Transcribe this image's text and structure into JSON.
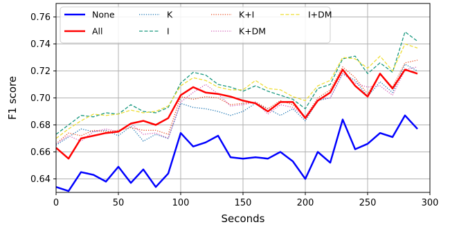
{
  "chart_data": {
    "type": "line",
    "title": "",
    "xlabel": "Seconds",
    "ylabel": "F1 score",
    "xlim": [
      0,
      300
    ],
    "ylim": [
      0.63,
      0.77
    ],
    "xticks": [
      0,
      50,
      100,
      150,
      200,
      250,
      300
    ],
    "yticks": [
      0.64,
      0.66,
      0.68,
      0.7,
      0.72,
      0.74,
      0.76
    ],
    "xtick_labels": [
      "0",
      "50",
      "100",
      "150",
      "200",
      "250",
      "300"
    ],
    "ytick_labels": [
      "0.64",
      "0.66",
      "0.68",
      "0.70",
      "0.72",
      "0.74",
      "0.76"
    ],
    "grid": true,
    "legend_placement": "top-left",
    "x": [
      0,
      10,
      20,
      30,
      40,
      50,
      60,
      70,
      80,
      90,
      100,
      110,
      120,
      130,
      140,
      150,
      160,
      170,
      180,
      190,
      200,
      210,
      220,
      230,
      240,
      250,
      260,
      270,
      280,
      290
    ],
    "series": [
      {
        "name": "None",
        "color": "#0000ff",
        "style": "solid",
        "width": 2.5,
        "values": [
          0.634,
          0.631,
          0.645,
          0.643,
          0.638,
          0.649,
          0.637,
          0.647,
          0.634,
          0.644,
          0.674,
          0.664,
          0.667,
          0.672,
          0.656,
          0.655,
          0.656,
          0.655,
          0.66,
          0.653,
          0.64,
          0.66,
          0.652,
          0.684,
          0.662,
          0.666,
          0.674,
          0.671,
          0.687,
          0.677
        ]
      },
      {
        "name": "All",
        "color": "#ff0000",
        "style": "solid",
        "width": 2.5,
        "values": [
          0.663,
          0.655,
          0.67,
          0.672,
          0.674,
          0.675,
          0.681,
          0.683,
          0.68,
          0.685,
          0.702,
          0.708,
          0.704,
          0.703,
          0.701,
          0.698,
          0.696,
          0.69,
          0.697,
          0.697,
          0.685,
          0.698,
          0.704,
          0.721,
          0.709,
          0.701,
          0.718,
          0.707,
          0.721,
          0.718
        ]
      },
      {
        "name": "K",
        "color": "#1f77b4",
        "style": "dotted",
        "width": 1.3,
        "values": [
          0.665,
          0.671,
          0.677,
          0.675,
          0.676,
          0.672,
          0.679,
          0.668,
          0.673,
          0.67,
          0.696,
          0.693,
          0.692,
          0.69,
          0.687,
          0.69,
          0.696,
          0.692,
          0.687,
          0.692,
          0.683,
          0.698,
          0.7,
          0.718,
          0.713,
          0.701,
          0.712,
          0.704,
          0.725,
          0.72
        ]
      },
      {
        "name": "I",
        "color": "#17977e",
        "style": "dashed",
        "width": 1.3,
        "values": [
          0.673,
          0.68,
          0.687,
          0.686,
          0.689,
          0.688,
          0.695,
          0.69,
          0.689,
          0.693,
          0.711,
          0.719,
          0.717,
          0.71,
          0.708,
          0.705,
          0.709,
          0.705,
          0.702,
          0.699,
          0.692,
          0.707,
          0.71,
          0.729,
          0.731,
          0.718,
          0.726,
          0.719,
          0.749,
          0.742
        ]
      },
      {
        "name": "K+I",
        "color": "#e8552a",
        "style": "dotted",
        "width": 1.3,
        "values": [
          0.666,
          0.674,
          0.672,
          0.676,
          0.675,
          0.676,
          0.678,
          0.676,
          0.676,
          0.673,
          0.701,
          0.699,
          0.701,
          0.7,
          0.695,
          0.696,
          0.697,
          0.692,
          0.698,
          0.695,
          0.686,
          0.7,
          0.706,
          0.723,
          0.715,
          0.703,
          0.718,
          0.708,
          0.726,
          0.728
        ]
      },
      {
        "name": "K+DM",
        "color": "#d35fb7",
        "style": "dotted",
        "width": 1.3,
        "values": [
          0.666,
          0.672,
          0.668,
          0.675,
          0.677,
          0.675,
          0.681,
          0.673,
          0.674,
          0.67,
          0.697,
          0.704,
          0.71,
          0.703,
          0.694,
          0.695,
          0.697,
          0.688,
          0.695,
          0.693,
          0.686,
          0.699,
          0.7,
          0.718,
          0.711,
          0.708,
          0.709,
          0.702,
          0.721,
          0.723
        ]
      },
      {
        "name": "I+DM",
        "color": "#eedd33",
        "style": "dashed",
        "width": 1.3,
        "values": [
          0.67,
          0.677,
          0.683,
          0.688,
          0.687,
          0.688,
          0.691,
          0.689,
          0.69,
          0.694,
          0.709,
          0.715,
          0.713,
          0.708,
          0.706,
          0.706,
          0.713,
          0.707,
          0.706,
          0.701,
          0.698,
          0.709,
          0.713,
          0.73,
          0.729,
          0.722,
          0.731,
          0.72,
          0.74,
          0.737
        ]
      }
    ]
  }
}
